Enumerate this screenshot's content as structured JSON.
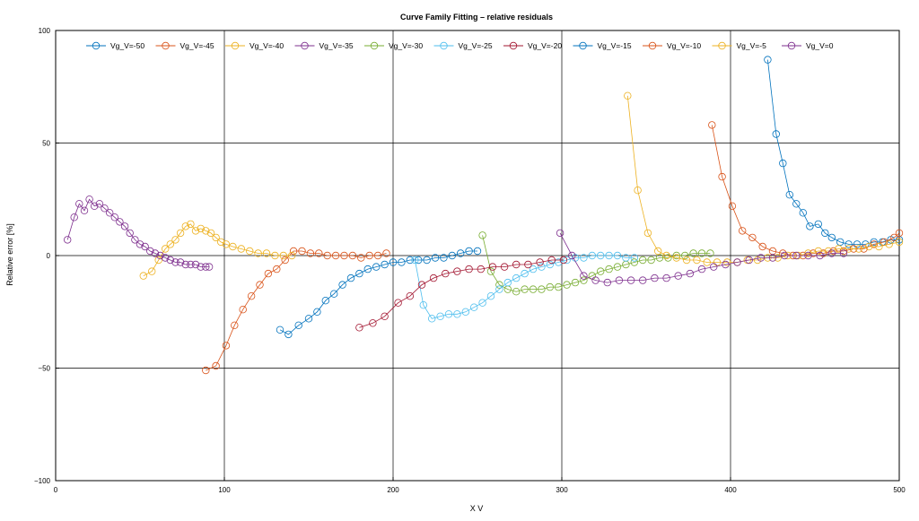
{
  "chart_data": {
    "type": "line",
    "title": "Curve Family Fitting – relative residuals",
    "xlabel": "X V",
    "ylabel": "Relative error [%]",
    "xlim": [
      0,
      500
    ],
    "ylim": [
      -100,
      100
    ],
    "xticks": [
      0,
      100,
      200,
      300,
      400,
      500
    ],
    "yticks": [
      -100,
      -50,
      0,
      50,
      100
    ],
    "grid": true,
    "legend": "top, single row",
    "series": [
      {
        "name": "Vg_V=-50",
        "color": "#0072BD",
        "x": [
          133,
          138,
          144,
          150,
          155,
          160,
          165,
          170,
          175,
          180,
          185,
          190,
          195,
          200,
          205,
          210,
          215,
          220,
          225,
          230,
          235,
          240,
          245,
          250
        ],
        "y": [
          -33,
          -35,
          -31,
          -28,
          -25,
          -20,
          -17,
          -13,
          -10,
          -8,
          -6,
          -5,
          -4,
          -3,
          -3,
          -2,
          -2,
          -2,
          -1,
          -1,
          0,
          1,
          2,
          2
        ]
      },
      {
        "name": "Vg_V=-45",
        "color": "#D95319",
        "x": [
          89,
          95,
          101,
          106,
          111,
          116,
          121,
          126,
          131,
          136,
          141,
          146,
          151,
          156,
          161,
          166,
          171,
          176,
          181,
          186,
          191,
          196
        ],
        "y": [
          -51,
          -49,
          -40,
          -31,
          -24,
          -18,
          -13,
          -8,
          -6,
          -2,
          2,
          2,
          1,
          1,
          0,
          0,
          0,
          0,
          -1,
          0,
          0,
          1
        ]
      },
      {
        "name": "Vg_V=-40",
        "color": "#EDB120",
        "x": [
          52,
          57,
          61,
          65,
          68,
          71,
          74,
          77,
          80,
          83,
          86,
          89,
          92,
          95,
          98,
          101,
          105,
          110,
          115,
          120,
          125,
          130,
          135,
          140
        ],
        "y": [
          -9,
          -7,
          -2,
          3,
          5,
          7,
          10,
          13,
          14,
          11,
          12,
          11,
          10,
          8,
          6,
          5,
          4,
          3,
          2,
          1,
          1,
          0,
          0,
          0
        ]
      },
      {
        "name": "Vg_V=-35",
        "color": "#7E2F8E",
        "x": [
          7,
          11,
          14,
          17,
          20,
          23,
          26,
          29,
          32,
          35,
          38,
          41,
          44,
          47,
          50,
          53,
          56,
          59,
          62,
          65,
          68,
          71,
          74,
          77,
          80,
          83,
          86,
          89,
          91
        ],
        "y": [
          7,
          17,
          23,
          20,
          25,
          22,
          23,
          21,
          19,
          17,
          15,
          13,
          10,
          7,
          5,
          4,
          2,
          1,
          0,
          -1,
          -2,
          -3,
          -3,
          -4,
          -4,
          -4,
          -5,
          -5,
          -5
        ]
      },
      {
        "name": "Vg_V=-30",
        "color": "#77AC30",
        "x": [
          253,
          258,
          263,
          268,
          273,
          278,
          283,
          288,
          293,
          298,
          303,
          308,
          313,
          318,
          323,
          328,
          333,
          338,
          343,
          348,
          353,
          358,
          363,
          368,
          373,
          378,
          383,
          388
        ],
        "y": [
          9,
          -7,
          -13,
          -15,
          -16,
          -15,
          -15,
          -15,
          -14,
          -14,
          -13,
          -12,
          -11,
          -9,
          -7,
          -6,
          -5,
          -4,
          -3,
          -2,
          -2,
          -1,
          -1,
          0,
          0,
          1,
          1,
          1
        ]
      },
      {
        "name": "Vg_V=-25",
        "color": "#4DBEEE",
        "x": [
          213,
          218,
          223,
          228,
          233,
          238,
          243,
          248,
          253,
          258,
          263,
          268,
          273,
          278,
          283,
          288,
          293,
          298,
          303,
          308,
          313,
          318,
          323,
          328,
          333,
          338,
          343
        ],
        "y": [
          -2,
          -22,
          -28,
          -27,
          -26,
          -26,
          -25,
          -23,
          -21,
          -18,
          -15,
          -12,
          -10,
          -8,
          -6,
          -5,
          -4,
          -3,
          -2,
          -1,
          -1,
          0,
          0,
          0,
          0,
          -1,
          -1
        ]
      },
      {
        "name": "Vg_V=-20",
        "color": "#A2142F",
        "x": [
          180,
          188,
          195,
          203,
          210,
          217,
          224,
          231,
          238,
          245,
          252,
          259,
          266,
          273,
          280,
          287,
          294,
          301
        ],
        "y": [
          -32,
          -30,
          -27,
          -21,
          -18,
          -13,
          -10,
          -8,
          -7,
          -6,
          -6,
          -5,
          -5,
          -4,
          -4,
          -3,
          -2,
          -2
        ]
      },
      {
        "name": "Vg_V=-15",
        "color": "#0072BD",
        "x": [
          422,
          427,
          431,
          435,
          439,
          443,
          447,
          452,
          456,
          460,
          465,
          470,
          475,
          480,
          485,
          490,
          495,
          500
        ],
        "y": [
          87,
          54,
          41,
          27,
          23,
          19,
          13,
          14,
          10,
          8,
          6,
          5,
          5,
          5,
          6,
          6,
          7,
          7
        ]
      },
      {
        "name": "Vg_V=-10",
        "color": "#D95319",
        "x": [
          389,
          395,
          401,
          407,
          413,
          419,
          425,
          431,
          437,
          443,
          449,
          455,
          461,
          467,
          473,
          479,
          485,
          491,
          497,
          500
        ],
        "y": [
          58,
          35,
          22,
          11,
          8,
          4,
          2,
          1,
          0,
          0,
          1,
          1,
          2,
          2,
          3,
          3,
          5,
          6,
          8,
          10
        ]
      },
      {
        "name": "Vg_V=-5",
        "color": "#EDB120",
        "x": [
          339,
          345,
          351,
          357,
          362,
          368,
          374,
          380,
          386,
          392,
          398,
          404,
          410,
          416,
          422,
          428,
          434,
          440,
          446,
          452,
          458,
          464,
          470,
          476,
          482,
          488,
          494,
          500
        ],
        "y": [
          71,
          29,
          10,
          2,
          0,
          -1,
          -2,
          -2,
          -3,
          -3,
          -3,
          -3,
          -2,
          -2,
          -1,
          -1,
          0,
          0,
          1,
          2,
          2,
          3,
          3,
          3,
          4,
          4,
          5,
          6
        ]
      },
      {
        "name": "Vg_V=0",
        "color": "#7E2F8E",
        "x": [
          299,
          306,
          313,
          320,
          327,
          334,
          341,
          348,
          355,
          362,
          369,
          376,
          383,
          390,
          397,
          404,
          411,
          418,
          425,
          432,
          439,
          446,
          453,
          460,
          467
        ],
        "y": [
          10,
          0,
          -9,
          -11,
          -12,
          -11,
          -11,
          -11,
          -10,
          -10,
          -9,
          -8,
          -6,
          -5,
          -4,
          -3,
          -2,
          -1,
          -1,
          0,
          0,
          0,
          0,
          1,
          1
        ]
      }
    ]
  }
}
